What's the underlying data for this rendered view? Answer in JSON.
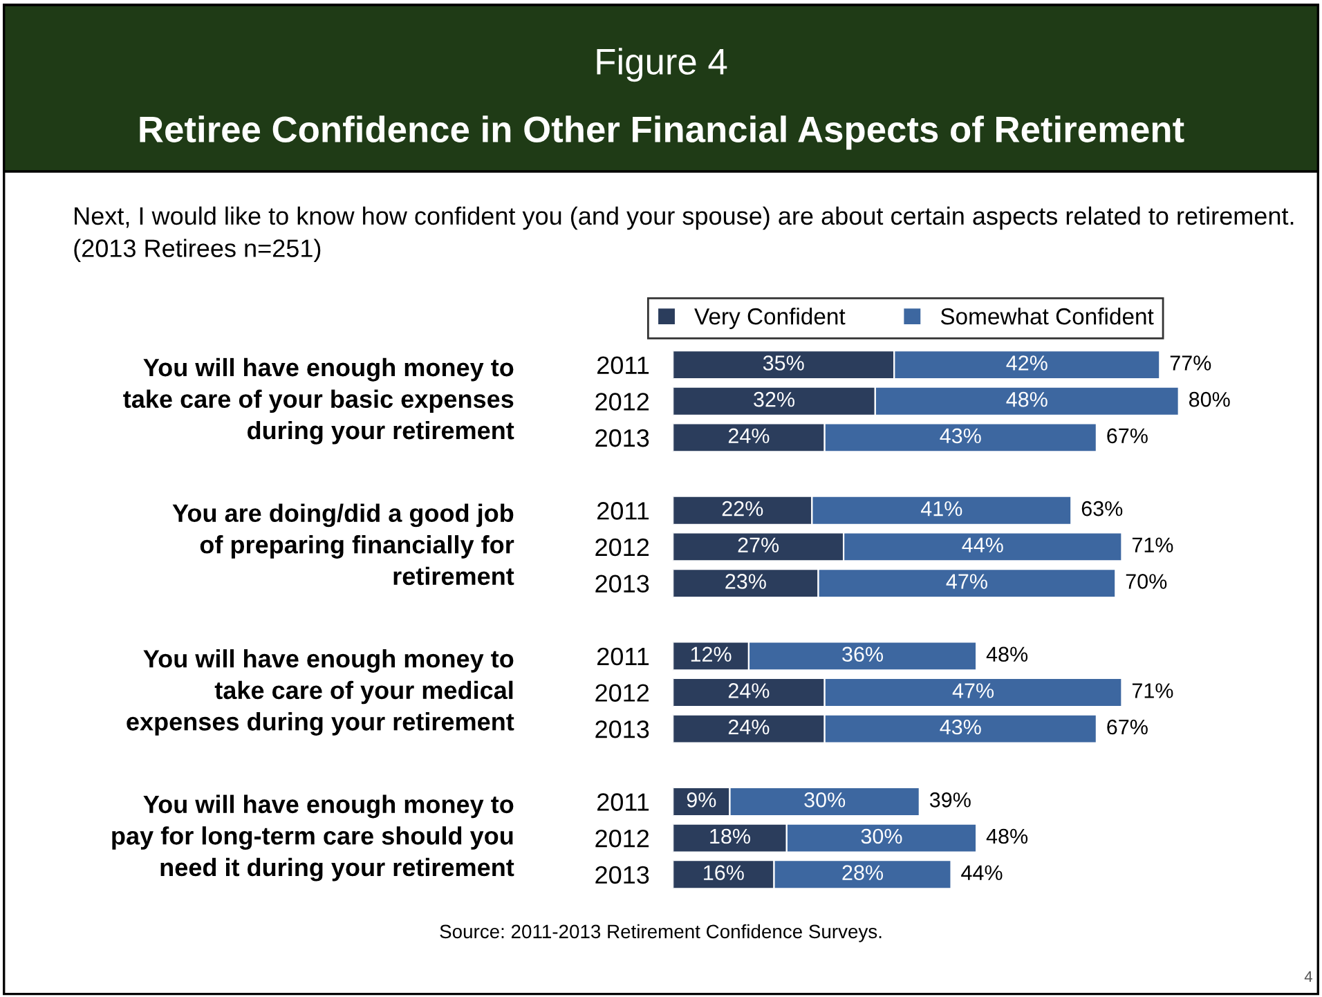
{
  "chart_data": {
    "type": "bar",
    "orientation": "horizontal",
    "stacked": true,
    "title": "Figure 4",
    "subtitle": "Retiree Confidence in Other Financial Aspects of Retirement",
    "categories": [
      "2011",
      "2012",
      "2013",
      "2011",
      "2012",
      "2013",
      "2011",
      "2012",
      "2013",
      "2011",
      "2012",
      "2013"
    ],
    "series": [
      {
        "name": "Very Confident",
        "color": "#2b3d5c",
        "values": [
          35,
          32,
          24,
          22,
          27,
          23,
          12,
          24,
          24,
          9,
          18,
          16
        ],
        "value_labels": [
          "35%",
          "32%",
          "24%",
          "22%",
          "27%",
          "23%",
          "12%",
          "24%",
          "24%",
          "9%",
          "18%",
          "16%"
        ]
      },
      {
        "name": "Somewhat Confident",
        "color": "#3d67a0",
        "values": [
          42,
          48,
          43,
          41,
          44,
          47,
          36,
          47,
          43,
          30,
          30,
          28
        ],
        "value_labels": [
          "42%",
          "48%",
          "43%",
          "41%",
          "44%",
          "47%",
          "36%",
          "47%",
          "43%",
          "30%",
          "30%",
          "28%"
        ]
      }
    ],
    "totals": [
      "77%",
      "80%",
      "67%",
      "63%",
      "71%",
      "70%",
      "48%",
      "71%",
      "67%",
      "39%",
      "48%",
      "44%"
    ],
    "legend": "top",
    "grid": false,
    "annotations": [
      "You will have enough money to\ntake care of your basic expenses\nduring your retirement",
      "You are doing/did a good job\nof preparing financially for\nretirement",
      "You will have enough money to\ntake care of your medical\nexpenses during your retirement",
      "You will have enough money to\npay for long-term care should you\nneed it during your retirement",
      "Next, I would like to know how confident you (and your spouse) are about certain aspects related to retirement. (2013 Retirees n=251)",
      "Source: 2011-2013 Retirement Confidence Surveys.",
      "4"
    ]
  }
}
